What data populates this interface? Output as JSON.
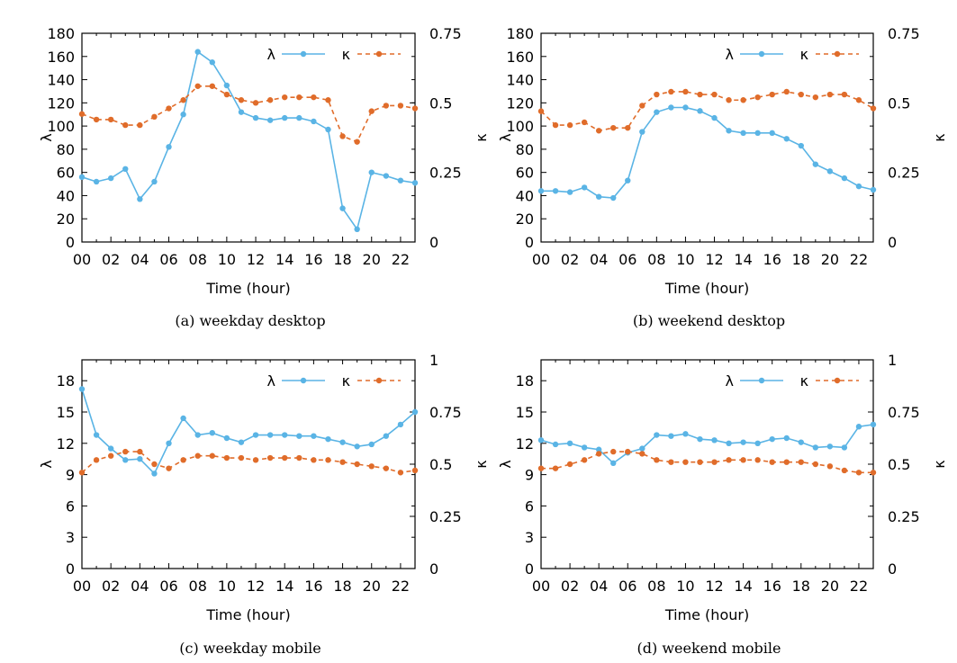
{
  "figure": {
    "panels": [
      {
        "caption": "(a) weekday desktop"
      },
      {
        "caption": "(b) weekend desktop"
      },
      {
        "caption": "(c) weekday mobile"
      },
      {
        "caption": "(d) weekend mobile"
      }
    ]
  },
  "colors": {
    "lambda": "#5ab4e5",
    "kappa": "#e06c2a",
    "axis": "#000000"
  },
  "chart_data": [
    {
      "type": "line",
      "caption": "(a) weekday desktop",
      "xlabel": "Time (hour)",
      "ylabel": "λ",
      "y2label": "κ",
      "xlim": [
        0,
        23
      ],
      "ylim": [
        0,
        180
      ],
      "y2lim": [
        0,
        0.75
      ],
      "xticks": [
        "00",
        "02",
        "04",
        "06",
        "08",
        "10",
        "12",
        "14",
        "16",
        "18",
        "20",
        "22"
      ],
      "yticks": [
        "0",
        "20",
        "40",
        "60",
        "80",
        "100",
        "120",
        "140",
        "160",
        "180"
      ],
      "y2ticks": [
        "0",
        "0.25",
        "0.5",
        "0.75"
      ],
      "x": [
        0,
        1,
        2,
        3,
        4,
        5,
        6,
        7,
        8,
        9,
        10,
        11,
        12,
        13,
        14,
        15,
        16,
        17,
        18,
        19,
        20,
        21,
        22,
        23
      ],
      "series": [
        {
          "name": "λ",
          "axis": "left",
          "values": [
            56,
            52,
            55,
            63,
            37,
            52,
            82,
            110,
            164,
            155,
            135,
            112,
            107,
            105,
            107,
            107,
            104,
            97,
            29,
            11,
            60,
            57,
            53,
            51
          ]
        },
        {
          "name": "κ",
          "axis": "right",
          "values": [
            0.46,
            0.44,
            0.44,
            0.42,
            0.42,
            0.45,
            0.48,
            0.51,
            0.56,
            0.56,
            0.53,
            0.51,
            0.5,
            0.51,
            0.52,
            0.52,
            0.52,
            0.51,
            0.38,
            0.36,
            0.47,
            0.49,
            0.49,
            0.48
          ]
        }
      ]
    },
    {
      "type": "line",
      "caption": "(b) weekend desktop",
      "xlabel": "Time (hour)",
      "ylabel": "λ",
      "y2label": "κ",
      "xlim": [
        0,
        23
      ],
      "ylim": [
        0,
        180
      ],
      "y2lim": [
        0,
        0.75
      ],
      "xticks": [
        "00",
        "02",
        "04",
        "06",
        "08",
        "10",
        "12",
        "14",
        "16",
        "18",
        "20",
        "22"
      ],
      "yticks": [
        "0",
        "20",
        "40",
        "60",
        "80",
        "100",
        "120",
        "140",
        "160",
        "180"
      ],
      "y2ticks": [
        "0",
        "0.25",
        "0.5",
        "0.75"
      ],
      "x": [
        0,
        1,
        2,
        3,
        4,
        5,
        6,
        7,
        8,
        9,
        10,
        11,
        12,
        13,
        14,
        15,
        16,
        17,
        18,
        19,
        20,
        21,
        22,
        23
      ],
      "series": [
        {
          "name": "λ",
          "axis": "left",
          "values": [
            44,
            44,
            43,
            47,
            39,
            38,
            53,
            95,
            112,
            116,
            116,
            113,
            107,
            96,
            94,
            94,
            94,
            89,
            83,
            67,
            61,
            55,
            48,
            45
          ]
        },
        {
          "name": "κ",
          "axis": "right",
          "values": [
            0.47,
            0.42,
            0.42,
            0.43,
            0.4,
            0.41,
            0.41,
            0.49,
            0.53,
            0.54,
            0.54,
            0.53,
            0.53,
            0.51,
            0.51,
            0.52,
            0.53,
            0.54,
            0.53,
            0.52,
            0.53,
            0.53,
            0.51,
            0.48
          ]
        }
      ]
    },
    {
      "type": "line",
      "caption": "(c) weekday mobile",
      "xlabel": "Time (hour)",
      "ylabel": "λ",
      "y2label": "κ",
      "xlim": [
        0,
        23
      ],
      "ylim": [
        0,
        20
      ],
      "y2lim": [
        0,
        1
      ],
      "xticks": [
        "00",
        "02",
        "04",
        "06",
        "08",
        "10",
        "12",
        "14",
        "16",
        "18",
        "20",
        "22"
      ],
      "yticks": [
        "0",
        "3",
        "6",
        "9",
        "12",
        "15",
        "18"
      ],
      "y2ticks": [
        "0",
        "0.25",
        "0.5",
        "0.75",
        "1"
      ],
      "x": [
        0,
        1,
        2,
        3,
        4,
        5,
        6,
        7,
        8,
        9,
        10,
        11,
        12,
        13,
        14,
        15,
        16,
        17,
        18,
        19,
        20,
        21,
        22,
        23
      ],
      "series": [
        {
          "name": "λ",
          "axis": "left",
          "values": [
            17.2,
            12.8,
            11.5,
            10.4,
            10.5,
            9.1,
            12.0,
            14.4,
            12.8,
            13.0,
            12.5,
            12.1,
            12.8,
            12.8,
            12.8,
            12.7,
            12.7,
            12.4,
            12.1,
            11.7,
            11.9,
            12.7,
            13.8,
            15.0
          ]
        },
        {
          "name": "κ",
          "axis": "right",
          "values": [
            0.46,
            0.52,
            0.54,
            0.56,
            0.56,
            0.5,
            0.48,
            0.52,
            0.54,
            0.54,
            0.53,
            0.53,
            0.52,
            0.53,
            0.53,
            0.53,
            0.52,
            0.52,
            0.51,
            0.5,
            0.49,
            0.48,
            0.46,
            0.47
          ]
        }
      ]
    },
    {
      "type": "line",
      "caption": "(d) weekend mobile",
      "xlabel": "Time (hour)",
      "ylabel": "λ",
      "y2label": "κ",
      "xlim": [
        0,
        23
      ],
      "ylim": [
        0,
        20
      ],
      "y2lim": [
        0,
        1
      ],
      "xticks": [
        "00",
        "02",
        "04",
        "06",
        "08",
        "10",
        "12",
        "14",
        "16",
        "18",
        "20",
        "22"
      ],
      "yticks": [
        "0",
        "3",
        "6",
        "9",
        "12",
        "15",
        "18"
      ],
      "y2ticks": [
        "0",
        "0.25",
        "0.5",
        "0.75",
        "1"
      ],
      "x": [
        0,
        1,
        2,
        3,
        4,
        5,
        6,
        7,
        8,
        9,
        10,
        11,
        12,
        13,
        14,
        15,
        16,
        17,
        18,
        19,
        20,
        21,
        22,
        23
      ],
      "series": [
        {
          "name": "λ",
          "axis": "left",
          "values": [
            12.3,
            11.9,
            12.0,
            11.6,
            11.4,
            10.1,
            11.1,
            11.5,
            12.8,
            12.7,
            12.9,
            12.4,
            12.3,
            12.0,
            12.1,
            12.0,
            12.4,
            12.5,
            12.1,
            11.6,
            11.7,
            11.6,
            13.6,
            13.8
          ]
        },
        {
          "name": "κ",
          "axis": "right",
          "values": [
            0.48,
            0.48,
            0.5,
            0.52,
            0.55,
            0.56,
            0.56,
            0.55,
            0.52,
            0.51,
            0.51,
            0.51,
            0.51,
            0.52,
            0.52,
            0.52,
            0.51,
            0.51,
            0.51,
            0.5,
            0.49,
            0.47,
            0.46,
            0.46
          ]
        }
      ]
    }
  ]
}
